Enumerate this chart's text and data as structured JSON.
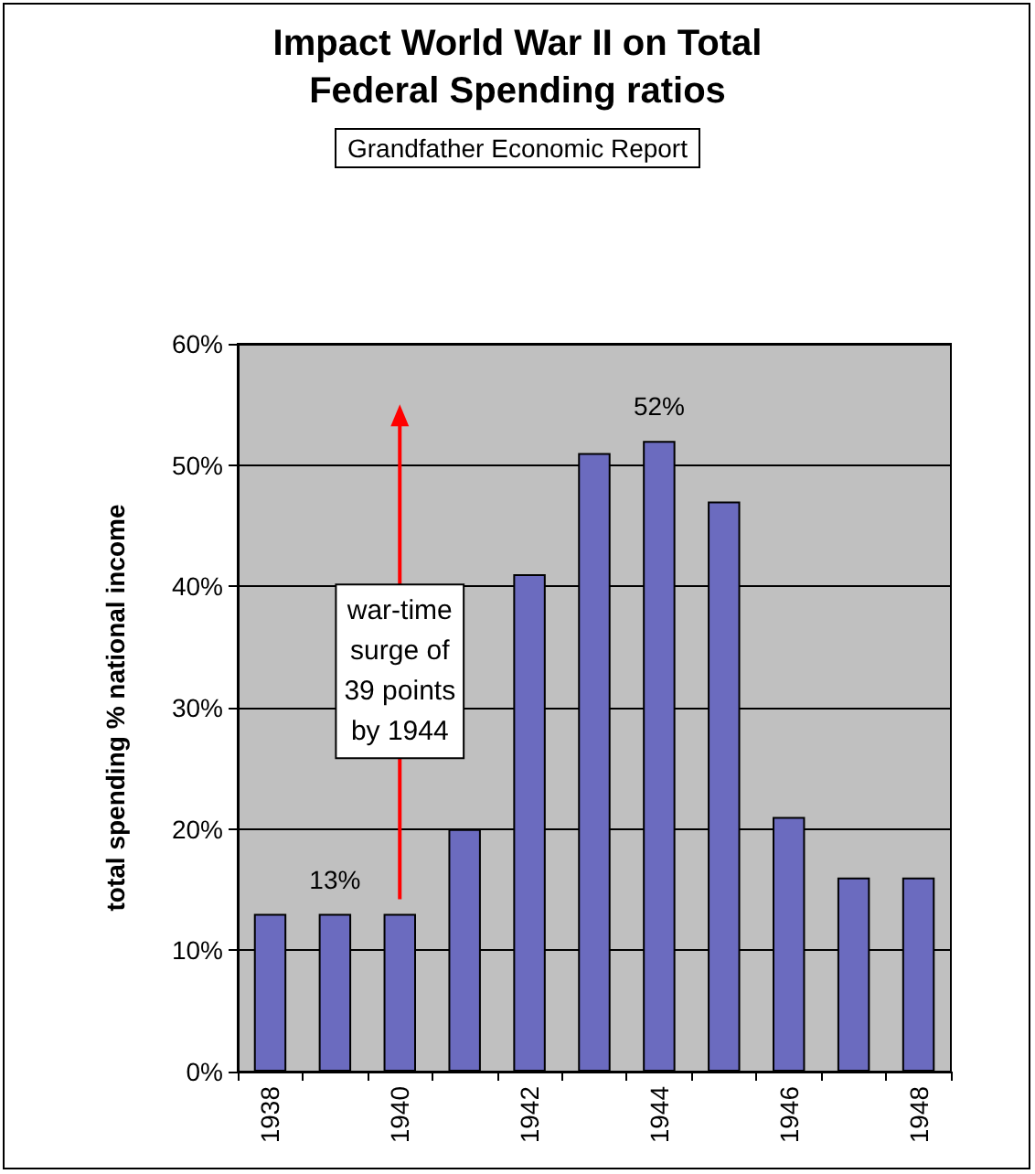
{
  "chart_data": {
    "type": "bar",
    "title": "Impact World War II on Total\nFederal Spending ratios",
    "ylabel": "total spending % national income",
    "categories": [
      "1938",
      null,
      "1940",
      null,
      "1942",
      null,
      "1944",
      null,
      "1946",
      null,
      "1948"
    ],
    "values": [
      13,
      13,
      13,
      20,
      41,
      51,
      52,
      47,
      21,
      16,
      16
    ],
    "value_labels": [
      null,
      "13%",
      null,
      null,
      null,
      null,
      "52%",
      null,
      null,
      null,
      null
    ],
    "color": "#6b6bbf",
    "ylim": [
      0,
      60
    ],
    "yticks": [
      {
        "value": 0,
        "label": "0%"
      },
      {
        "value": 10,
        "label": "10%"
      },
      {
        "value": 20,
        "label": "20%"
      },
      {
        "value": 30,
        "label": "30%"
      },
      {
        "value": 40,
        "label": "40%"
      },
      {
        "value": 50,
        "label": "50%"
      },
      {
        "value": 60,
        "label": "60%"
      }
    ],
    "grid": "y",
    "annotations": [
      "Grandfather Economic Report",
      "war-time\nsurge of\n39 points\nby 1944"
    ]
  }
}
